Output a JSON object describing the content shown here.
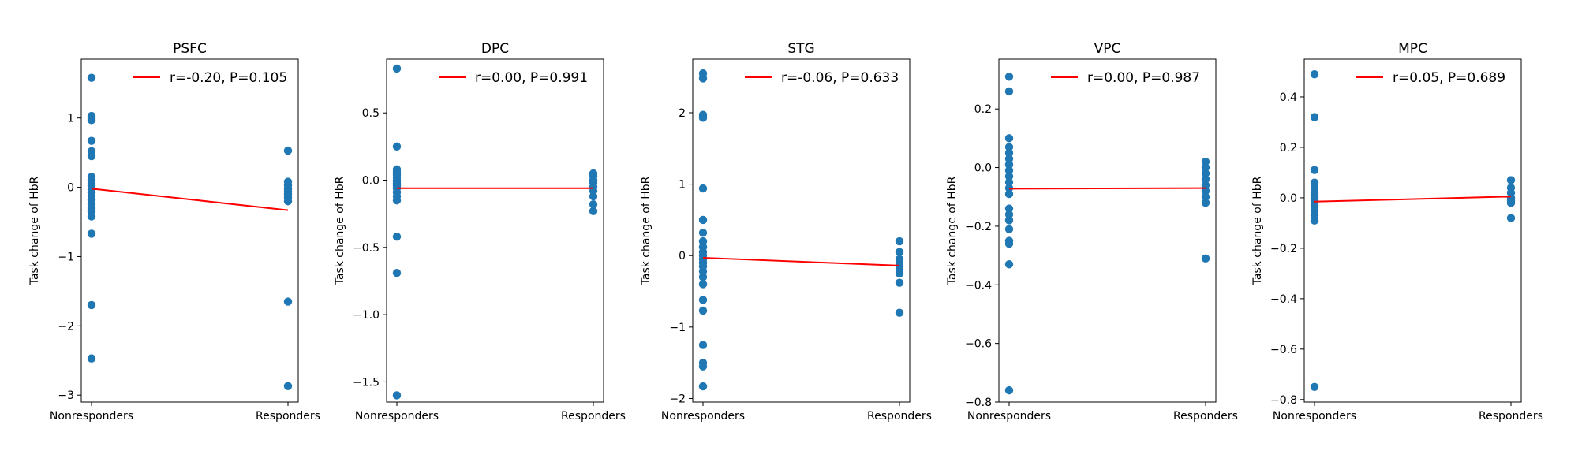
{
  "figure_colors": {
    "points": "#1f77b4",
    "fit_line": "#ff0000",
    "axes": "#000000",
    "background": "#ffffff"
  },
  "chart_data": [
    {
      "type": "scatter",
      "title": "PSFC",
      "xlabel": "",
      "ylabel": "Task change of HbR",
      "categories": [
        "Nonresponders",
        "Responders"
      ],
      "ylim": [
        -3.1,
        1.85
      ],
      "yticks": [
        1,
        0,
        -1,
        -2,
        -3
      ],
      "ytick_labels": [
        "1",
        "0",
        "−1",
        "−2",
        "−3"
      ],
      "legend": {
        "text": "r=-0.20, P=0.105",
        "placement": "top-right"
      },
      "series": [
        {
          "category": "Nonresponders",
          "values": [
            1.58,
            1.03,
            1.0,
            0.97,
            0.67,
            0.52,
            0.45,
            0.15,
            0.1,
            0.05,
            0.02,
            -0.03,
            -0.08,
            -0.12,
            -0.18,
            -0.25,
            -0.3,
            -0.35,
            -0.42,
            -0.67,
            -1.7,
            -2.47
          ]
        },
        {
          "category": "Responders",
          "values": [
            0.53,
            0.08,
            0.03,
            -0.02,
            -0.06,
            -0.1,
            -0.15,
            -0.2,
            -1.65,
            -2.87
          ]
        }
      ],
      "fit_line": {
        "start": -0.02,
        "end": -0.33
      }
    },
    {
      "type": "scatter",
      "title": "DPC",
      "xlabel": "",
      "ylabel": "Task change of HbR",
      "categories": [
        "Nonresponders",
        "Responders"
      ],
      "ylim": [
        -1.65,
        0.9
      ],
      "yticks": [
        0.5,
        0.0,
        -0.5,
        -1.0,
        -1.5
      ],
      "ytick_labels": [
        "0.5",
        "0.0",
        "−0.5",
        "−1.0",
        "−1.5"
      ],
      "legend": {
        "text": "r=0.00, P=0.991",
        "placement": "top-right"
      },
      "series": [
        {
          "category": "Nonresponders",
          "values": [
            0.83,
            0.25,
            0.08,
            0.06,
            0.04,
            0.02,
            0.0,
            -0.02,
            -0.04,
            -0.06,
            -0.09,
            -0.12,
            -0.15,
            -0.42,
            -0.69,
            -1.6
          ]
        },
        {
          "category": "Responders",
          "values": [
            0.05,
            0.03,
            0.0,
            -0.02,
            -0.05,
            -0.08,
            -0.12,
            -0.18,
            -0.23
          ]
        }
      ],
      "fit_line": {
        "start": -0.06,
        "end": -0.06
      }
    },
    {
      "type": "scatter",
      "title": "STG",
      "xlabel": "",
      "ylabel": "Task change of HbR",
      "categories": [
        "Nonresponders",
        "Responders"
      ],
      "ylim": [
        -2.05,
        2.75
      ],
      "yticks": [
        2,
        1,
        0,
        -1,
        -2
      ],
      "ytick_labels": [
        "2",
        "1",
        "0",
        "−1",
        "−2"
      ],
      "legend": {
        "text": "r=-0.06, P=0.633",
        "placement": "top-right"
      },
      "series": [
        {
          "category": "Nonresponders",
          "values": [
            2.55,
            2.48,
            1.97,
            1.93,
            0.94,
            0.5,
            0.32,
            0.2,
            0.12,
            0.05,
            0.0,
            -0.05,
            -0.1,
            -0.15,
            -0.22,
            -0.3,
            -0.4,
            -0.62,
            -0.77,
            -1.25,
            -1.5,
            -1.55,
            -1.83
          ]
        },
        {
          "category": "Responders",
          "values": [
            0.2,
            0.05,
            -0.05,
            -0.1,
            -0.15,
            -0.2,
            -0.25,
            -0.38,
            -0.8
          ]
        }
      ],
      "fit_line": {
        "start": -0.03,
        "end": -0.14
      }
    },
    {
      "type": "scatter",
      "title": "VPC",
      "xlabel": "",
      "ylabel": "Task change of HbR",
      "categories": [
        "Nonresponders",
        "Responders"
      ],
      "ylim": [
        -0.8,
        0.37
      ],
      "yticks": [
        0.2,
        0.0,
        -0.2,
        -0.4,
        -0.6,
        -0.8
      ],
      "ytick_labels": [
        "0.2",
        "0.0",
        "−0.2",
        "−0.4",
        "−0.6",
        "−0.8"
      ],
      "legend": {
        "text": "r=0.00, P=0.987",
        "placement": "top-right"
      },
      "series": [
        {
          "category": "Nonresponders",
          "values": [
            0.31,
            0.26,
            0.1,
            0.07,
            0.05,
            0.03,
            0.01,
            -0.01,
            -0.03,
            -0.05,
            -0.07,
            -0.09,
            -0.14,
            -0.16,
            -0.18,
            -0.21,
            -0.25,
            -0.26,
            -0.33,
            -0.76
          ]
        },
        {
          "category": "Responders",
          "values": [
            0.02,
            0.0,
            -0.02,
            -0.04,
            -0.06,
            -0.08,
            -0.1,
            -0.12,
            -0.31
          ]
        }
      ],
      "fit_line": {
        "start": -0.072,
        "end": -0.07
      }
    },
    {
      "type": "scatter",
      "title": "MPC",
      "xlabel": "",
      "ylabel": "Task change of HbR",
      "categories": [
        "Nonresponders",
        "Responders"
      ],
      "ylim": [
        -0.81,
        0.55
      ],
      "yticks": [
        0.4,
        0.2,
        0.0,
        -0.2,
        -0.4,
        -0.6,
        -0.8
      ],
      "ytick_labels": [
        "0.4",
        "0.2",
        "0.0",
        "−0.2",
        "−0.4",
        "−0.6",
        "−0.8"
      ],
      "legend": {
        "text": "r=0.05, P=0.689",
        "placement": "top-right"
      },
      "series": [
        {
          "category": "Nonresponders",
          "values": [
            0.49,
            0.32,
            0.11,
            0.06,
            0.04,
            0.02,
            0.01,
            0.0,
            -0.01,
            -0.02,
            -0.03,
            -0.05,
            -0.07,
            -0.09,
            -0.75
          ]
        },
        {
          "category": "Responders",
          "values": [
            0.07,
            0.04,
            0.02,
            0.0,
            -0.01,
            -0.02,
            -0.08
          ]
        }
      ],
      "fit_line": {
        "start": -0.015,
        "end": 0.005
      }
    }
  ]
}
